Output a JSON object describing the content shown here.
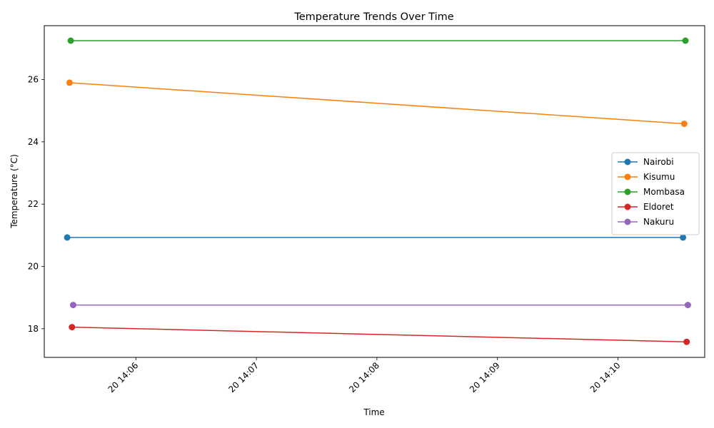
{
  "chart_data": {
    "type": "line",
    "title": "Temperature Trends Over Time",
    "xlabel": "Time",
    "ylabel": "Temperature (°C)",
    "x_ticks": [
      {
        "t": 6,
        "label": "20 14:06"
      },
      {
        "t": 7,
        "label": "20 14:07"
      },
      {
        "t": 8,
        "label": "20 14:08"
      },
      {
        "t": 9,
        "label": "20 14:09"
      },
      {
        "t": 10,
        "label": "20 14:10"
      }
    ],
    "y_ticks": [
      18,
      20,
      22,
      24,
      26
    ],
    "xlim": [
      5.24,
      10.72
    ],
    "ylim": [
      17.08,
      27.73
    ],
    "legend_position": "center-right",
    "grid": false,
    "series": [
      {
        "name": "Nairobi",
        "color": "#1f77b4",
        "points": [
          [
            5.43,
            20.93
          ],
          [
            10.54,
            20.93
          ]
        ]
      },
      {
        "name": "Kisumu",
        "color": "#ff7f0e",
        "points": [
          [
            5.45,
            25.9
          ],
          [
            10.55,
            24.58
          ]
        ]
      },
      {
        "name": "Mombasa",
        "color": "#2ca02c",
        "points": [
          [
            5.46,
            27.25
          ],
          [
            10.56,
            27.25
          ]
        ]
      },
      {
        "name": "Eldoret",
        "color": "#d62728",
        "points": [
          [
            5.47,
            18.05
          ],
          [
            10.57,
            17.58
          ]
        ]
      },
      {
        "name": "Nakuru",
        "color": "#9467bd",
        "points": [
          [
            5.48,
            18.76
          ],
          [
            10.58,
            18.76
          ]
        ]
      }
    ]
  }
}
